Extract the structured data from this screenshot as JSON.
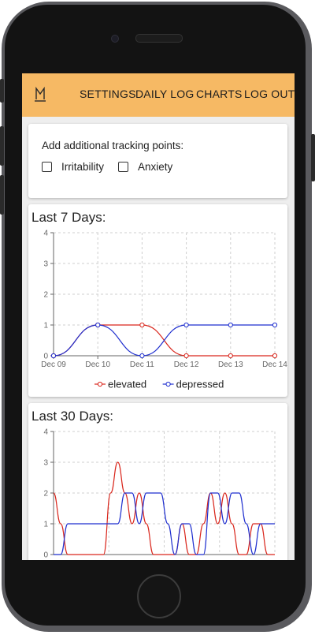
{
  "nav": {
    "logo_icon": "M-logo-icon",
    "items": [
      "SETTINGS",
      "DAILY LOG",
      "CHARTS",
      "LOG OUT"
    ]
  },
  "tracking": {
    "title": "Add additional tracking points:",
    "options": [
      {
        "label": "Irritability",
        "checked": false
      },
      {
        "label": "Anxiety",
        "checked": false
      }
    ]
  },
  "colors": {
    "nav_bg": "#f6b964",
    "elevated": "#d9261c",
    "depressed": "#1f2fcf"
  },
  "chart_data": [
    {
      "type": "line",
      "title": "Last 7 Days:",
      "categories": [
        "Dec 09",
        "Dec 10",
        "Dec 11",
        "Dec 12",
        "Dec 13",
        "Dec 14"
      ],
      "series": [
        {
          "name": "elevated",
          "values": [
            0,
            1,
            1,
            0,
            0,
            0
          ]
        },
        {
          "name": "depressed",
          "values": [
            0,
            1,
            0,
            1,
            1,
            1
          ]
        }
      ],
      "ylim": [
        0,
        4
      ],
      "yticks": [
        0,
        1,
        2,
        3,
        4
      ],
      "grid": true,
      "legend": "bottom"
    },
    {
      "type": "line",
      "title": "Last 30 Days:",
      "series": [
        {
          "name": "elevated",
          "values": [
            2,
            1,
            0,
            0,
            0,
            0,
            0,
            0,
            2,
            3,
            2,
            1,
            2,
            1,
            0,
            0,
            0,
            0,
            1,
            0,
            0,
            1,
            2,
            1,
            2,
            1,
            0,
            0,
            1,
            1,
            0,
            0
          ]
        },
        {
          "name": "depressed",
          "values": [
            0,
            0,
            1,
            1,
            1,
            1,
            1,
            1,
            1,
            1,
            2,
            2,
            1,
            2,
            2,
            2,
            1,
            0,
            1,
            1,
            0,
            0,
            2,
            2,
            1,
            2,
            2,
            1,
            0,
            1,
            1,
            1
          ]
        }
      ],
      "ylim": [
        0,
        4
      ],
      "yticks": [
        0,
        1,
        2,
        3,
        4
      ],
      "grid": true
    }
  ]
}
